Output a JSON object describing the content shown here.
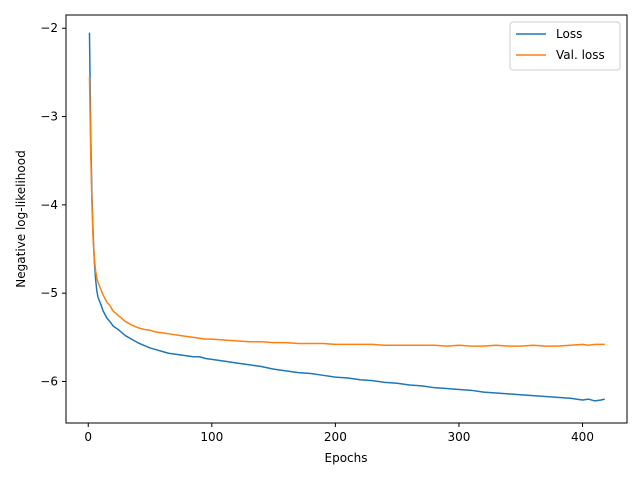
{
  "chart_data": {
    "type": "line",
    "title": "",
    "xlabel": "Epochs",
    "ylabel": "Negative log-likelihood",
    "xlim": [
      -18,
      436
    ],
    "ylim": [
      -6.47,
      -1.85
    ],
    "xticks": [
      0,
      100,
      200,
      300,
      400
    ],
    "yticks": [
      -6,
      -5,
      -4,
      -3,
      -2
    ],
    "grid": false,
    "legend_position": "top-right",
    "series": [
      {
        "name": "Loss",
        "color": "#1f77b4",
        "x": [
          1,
          2,
          3,
          4,
          5,
          6,
          7,
          8,
          10,
          12,
          15,
          18,
          20,
          25,
          30,
          35,
          40,
          45,
          50,
          55,
          60,
          65,
          70,
          75,
          80,
          85,
          90,
          95,
          100,
          110,
          120,
          130,
          140,
          150,
          160,
          170,
          180,
          190,
          200,
          210,
          220,
          230,
          240,
          250,
          260,
          270,
          280,
          290,
          300,
          310,
          320,
          330,
          340,
          350,
          360,
          370,
          380,
          390,
          400,
          405,
          410,
          415,
          418
        ],
        "y": [
          -2.05,
          -3.2,
          -3.9,
          -4.35,
          -4.65,
          -4.85,
          -4.98,
          -5.05,
          -5.12,
          -5.2,
          -5.28,
          -5.33,
          -5.37,
          -5.42,
          -5.48,
          -5.52,
          -5.56,
          -5.59,
          -5.62,
          -5.64,
          -5.66,
          -5.68,
          -5.69,
          -5.7,
          -5.71,
          -5.72,
          -5.72,
          -5.74,
          -5.75,
          -5.77,
          -5.79,
          -5.81,
          -5.83,
          -5.86,
          -5.88,
          -5.9,
          -5.91,
          -5.93,
          -5.95,
          -5.96,
          -5.98,
          -5.99,
          -6.01,
          -6.02,
          -6.04,
          -6.05,
          -6.07,
          -6.08,
          -6.09,
          -6.1,
          -6.12,
          -6.13,
          -6.14,
          -6.15,
          -6.16,
          -6.17,
          -6.18,
          -6.19,
          -6.21,
          -6.2,
          -6.22,
          -6.21,
          -6.2
        ]
      },
      {
        "name": "Val. loss",
        "color": "#ff7f0e",
        "x": [
          1,
          2,
          3,
          4,
          5,
          6,
          7,
          8,
          10,
          12,
          15,
          18,
          20,
          25,
          30,
          35,
          40,
          45,
          50,
          55,
          60,
          65,
          70,
          75,
          80,
          85,
          90,
          95,
          100,
          110,
          120,
          130,
          140,
          150,
          160,
          170,
          180,
          190,
          200,
          210,
          220,
          230,
          240,
          250,
          260,
          270,
          280,
          290,
          300,
          310,
          320,
          330,
          340,
          350,
          360,
          370,
          380,
          390,
          400,
          405,
          410,
          415,
          418
        ],
        "y": [
          -2.55,
          -3.4,
          -4.0,
          -4.4,
          -4.62,
          -4.75,
          -4.83,
          -4.88,
          -4.95,
          -5.02,
          -5.1,
          -5.15,
          -5.2,
          -5.26,
          -5.32,
          -5.36,
          -5.39,
          -5.41,
          -5.42,
          -5.44,
          -5.45,
          -5.46,
          -5.47,
          -5.48,
          -5.49,
          -5.5,
          -5.51,
          -5.52,
          -5.52,
          -5.53,
          -5.54,
          -5.55,
          -5.55,
          -5.56,
          -5.56,
          -5.57,
          -5.57,
          -5.57,
          -5.58,
          -5.58,
          -5.58,
          -5.58,
          -5.59,
          -5.59,
          -5.59,
          -5.59,
          -5.59,
          -5.6,
          -5.59,
          -5.6,
          -5.6,
          -5.59,
          -5.6,
          -5.6,
          -5.59,
          -5.6,
          -5.6,
          -5.59,
          -5.58,
          -5.59,
          -5.58,
          -5.58,
          -5.58
        ]
      }
    ]
  }
}
